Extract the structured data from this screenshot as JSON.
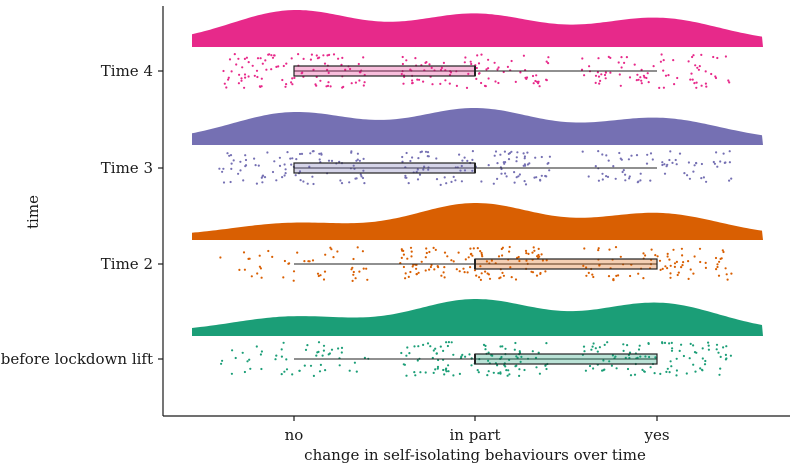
{
  "chart_data": {
    "type": "raincloud",
    "title": "",
    "xlabel": "change in self-isolating behaviours over time",
    "ylabel": "time",
    "x_categories": [
      "no",
      "in part",
      "yes"
    ],
    "groups": [
      {
        "name": "before lockdown lift",
        "color": "#1b9e77",
        "box": {
          "q1": "in part",
          "median": "in part",
          "q3": "yes",
          "whisker_low": "no",
          "whisker_high": "yes"
        },
        "density_peaks": {
          "no": 0.45,
          "in part": 0.95,
          "yes": 0.85
        }
      },
      {
        "name": "Time 2",
        "color": "#d95f02",
        "box": {
          "q1": "in part",
          "median": "in part",
          "q3": "yes",
          "whisker_low": "no",
          "whisker_high": "yes"
        },
        "density_peaks": {
          "no": 0.4,
          "in part": 1.0,
          "yes": 0.7
        }
      },
      {
        "name": "Time 3",
        "color": "#7570b3",
        "box": {
          "q1": "no",
          "median": "in part",
          "q3": "in part",
          "whisker_low": "no",
          "whisker_high": "yes"
        },
        "density_peaks": {
          "no": 0.75,
          "in part": 0.85,
          "yes": 0.6
        }
      },
      {
        "name": "Time 4",
        "color": "#e7298a",
        "box": {
          "q1": "no",
          "median": "in part",
          "q3": "in part",
          "whisker_low": "no",
          "whisker_high": "yes"
        },
        "density_peaks": {
          "no": 0.85,
          "in part": 0.75,
          "yes": 0.65
        }
      }
    ]
  }
}
